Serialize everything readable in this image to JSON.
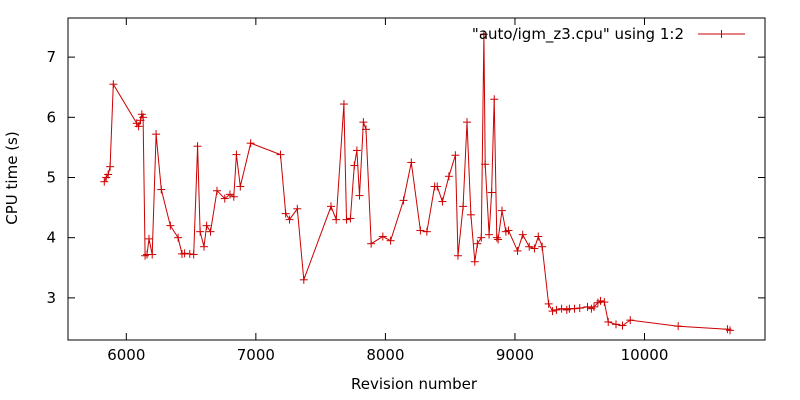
{
  "chart_data": {
    "type": "line",
    "xlabel": "Revision number",
    "ylabel": "CPU time (s)",
    "xlim": [
      5550,
      10930
    ],
    "ylim": [
      2.3,
      7.65
    ],
    "xticks": [
      6000,
      7000,
      8000,
      9000,
      10000
    ],
    "yticks": [
      3,
      4,
      5,
      6,
      7
    ],
    "grid": false,
    "legend_position": "top-right",
    "series": [
      {
        "name": "\"auto/igm_z3.cpu\" using 1:2",
        "color": "#cc0000",
        "marker": "plus",
        "x": [
          5830,
          5845,
          5860,
          5875,
          5900,
          6080,
          6095,
          6110,
          6120,
          6130,
          6145,
          6160,
          6175,
          6200,
          6230,
          6270,
          6340,
          6400,
          6430,
          6450,
          6490,
          6520,
          6550,
          6570,
          6600,
          6620,
          6650,
          6700,
          6760,
          6800,
          6830,
          6850,
          6880,
          6960,
          7190,
          7230,
          7260,
          7320,
          7370,
          7580,
          7620,
          7680,
          7700,
          7730,
          7760,
          7780,
          7800,
          7830,
          7850,
          7890,
          7980,
          8040,
          8140,
          8200,
          8270,
          8320,
          8380,
          8400,
          8440,
          8490,
          8540,
          8560,
          8600,
          8630,
          8660,
          8690,
          8710,
          8740,
          8760,
          8770,
          8800,
          8820,
          8840,
          8860,
          8870,
          8900,
          8930,
          8950,
          9020,
          9060,
          9110,
          9150,
          9180,
          9210,
          9260,
          9290,
          9320,
          9360,
          9400,
          9420,
          9460,
          9500,
          9560,
          9590,
          9610,
          9640,
          9660,
          9690,
          9720,
          9780,
          9830,
          9890,
          10260,
          10640,
          10660
        ],
        "y": [
          4.93,
          5.0,
          5.05,
          5.18,
          6.55,
          5.9,
          5.85,
          5.95,
          6.05,
          6.0,
          3.7,
          3.72,
          3.98,
          3.72,
          5.72,
          4.8,
          4.2,
          4.0,
          3.73,
          3.74,
          3.73,
          3.72,
          5.52,
          4.1,
          3.85,
          4.2,
          4.1,
          4.78,
          4.65,
          4.72,
          4.68,
          5.38,
          4.85,
          5.57,
          5.38,
          4.4,
          4.3,
          4.48,
          3.3,
          4.52,
          4.3,
          6.22,
          4.3,
          4.32,
          5.2,
          5.45,
          4.7,
          5.92,
          5.8,
          3.9,
          4.02,
          3.95,
          4.62,
          5.25,
          4.12,
          4.1,
          4.85,
          4.85,
          4.6,
          5.02,
          5.37,
          3.7,
          4.52,
          5.92,
          4.38,
          3.6,
          3.9,
          4.0,
          7.38,
          5.22,
          4.05,
          4.75,
          6.3,
          4.0,
          3.97,
          4.45,
          4.1,
          4.12,
          3.78,
          4.05,
          3.85,
          3.82,
          4.02,
          3.85,
          2.9,
          2.78,
          2.8,
          2.82,
          2.8,
          2.82,
          2.82,
          2.83,
          2.85,
          2.82,
          2.85,
          2.92,
          2.95,
          2.93,
          2.6,
          2.56,
          2.54,
          2.63,
          2.53,
          2.48,
          2.46
        ]
      }
    ]
  }
}
